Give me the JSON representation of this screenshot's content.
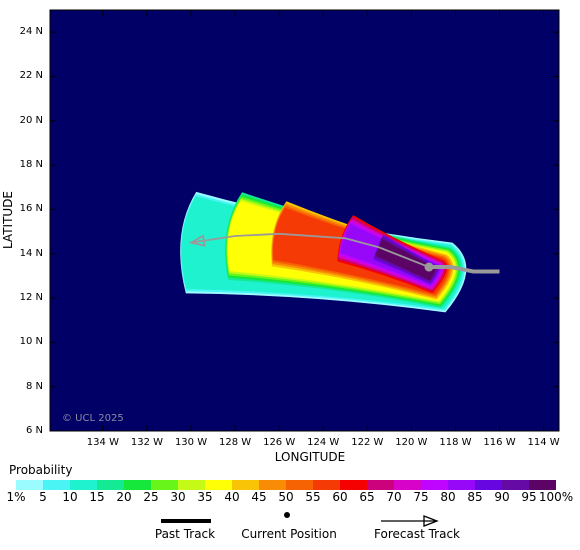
{
  "axes": {
    "lat_title": "LATITUDE",
    "lon_title": "LONGITUDE",
    "lat_ticks": [
      "24 N",
      "22 N",
      "20 N",
      "18 N",
      "16 N",
      "14 N",
      "12 N",
      "10 N",
      "8 N",
      "6 N"
    ],
    "lon_ticks": [
      "134 W",
      "132 W",
      "130 W",
      "128 W",
      "126 W",
      "124 W",
      "122 W",
      "120 W",
      "118 W",
      "116 W",
      "114 W"
    ]
  },
  "copyright": "© UCL 2025",
  "legend": {
    "title": "Probability",
    "bins": [
      "1%",
      "5",
      "10",
      "15",
      "20",
      "25",
      "30",
      "35",
      "40",
      "45",
      "50",
      "55",
      "60",
      "65",
      "70",
      "75",
      "80",
      "85",
      "90",
      "95",
      "100%"
    ],
    "colors": [
      "#9afcff",
      "#4af4f4",
      "#1ef2ce",
      "#13ea93",
      "#15e73b",
      "#67f51a",
      "#c4fa16",
      "#ffff05",
      "#f8c405",
      "#f98c05",
      "#f56302",
      "#f53a05",
      "#f50101",
      "#cc017c",
      "#d803c8",
      "#bf05ff",
      "#9808f8",
      "#6806e2",
      "#650aa4",
      "#5c0465"
    ],
    "past_track": "Past Track",
    "current_position": "Current Position",
    "forecast_track": "Forecast Track"
  },
  "map": {
    "background": "#000066",
    "track_color": "#9a9a9a",
    "current_position": {
      "lon": -119.2,
      "lat": 13.4
    },
    "past_track": [
      {
        "lon": -116,
        "lat": 13.2
      },
      {
        "lon": -117.2,
        "lat": 13.2
      },
      {
        "lon": -118.2,
        "lat": 13.4
      },
      {
        "lon": -119.2,
        "lat": 13.4
      }
    ],
    "forecast_track": [
      {
        "lon": -119.2,
        "lat": 13.4
      },
      {
        "lon": -121.5,
        "lat": 14.3
      },
      {
        "lon": -123,
        "lat": 14.7
      },
      {
        "lon": -126,
        "lat": 14.9
      },
      {
        "lon": -128,
        "lat": 14.8
      },
      {
        "lon": -130,
        "lat": 14.5
      }
    ]
  }
}
